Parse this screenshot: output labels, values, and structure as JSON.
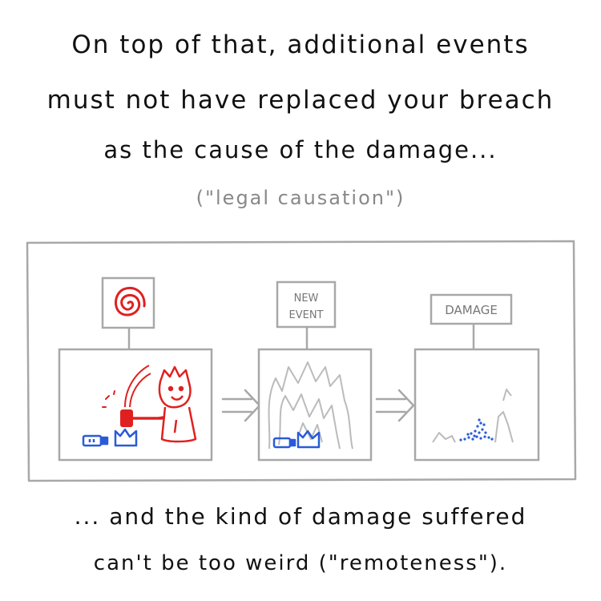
{
  "text": {
    "line1": "On top of that, additional events",
    "line2": "must not have replaced your breach",
    "line3": "as the cause of the damage...",
    "line4": "(\"legal causation\")",
    "bottom1": "... and the kind of damage suffered",
    "bottom2": "can't be too weird (\"remoteness\")."
  },
  "signs": {
    "new_event_line1": "NEW",
    "new_event_line2": "EVENT",
    "damage": "DAMAGE"
  },
  "colors": {
    "ink": "#111111",
    "grey": "#a8a8a8",
    "red": "#e02020",
    "blue": "#2a5bd7"
  }
}
